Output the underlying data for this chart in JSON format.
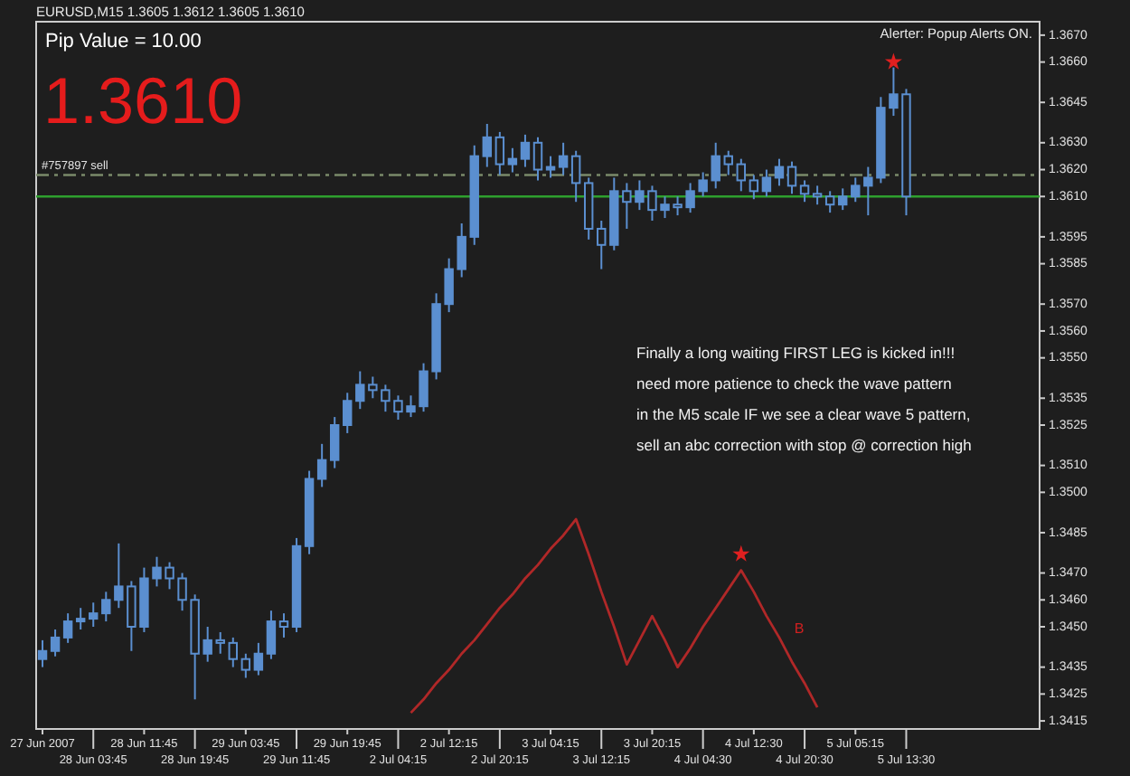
{
  "chart_data": {
    "type": "candlestick",
    "title": "EURUSD,M15  1.3605 1.3612 1.3605 1.3610",
    "subtitle": "Pip Value = 10.00",
    "annotations": [
      "1.3610",
      "Alerter:  Popup Alerts ON.",
      "Finally a long waiting FIRST LEG is kicked in!!!\nneed more patience to check the wave pattern\nin the M5 scale IF we see a clear wave 5 pattern,\nsell an abc correction with stop @ correction high",
      "B"
    ],
    "categories": [
      "27 Jun 2007",
      null,
      null,
      null,
      "28 Jun 03:45",
      null,
      null,
      null,
      "28 Jun 11:45",
      null,
      null,
      null,
      "28 Jun 19:45",
      null,
      null,
      null,
      "29 Jun 03:45",
      null,
      null,
      null,
      "29 Jun 11:45",
      null,
      null,
      null,
      "29 Jun 19:45",
      null,
      null,
      null,
      "2 Jul 04:15",
      null,
      null,
      null,
      "2 Jul 12:15",
      null,
      null,
      null,
      "2 Jul 20:15",
      null,
      null,
      null,
      "3 Jul 04:15",
      null,
      null,
      null,
      "3 Jul 12:15",
      null,
      null,
      null,
      "3 Jul 20:15",
      null,
      null,
      null,
      "4 Jul 04:30",
      null,
      null,
      null,
      "4 Jul 12:30",
      null,
      null,
      null,
      "4 Jul 20:30",
      null,
      null,
      null,
      "5 Jul 05:15",
      null,
      null,
      null,
      "5 Jul 13:30",
      null,
      null,
      null,
      null,
      null,
      null,
      null,
      null,
      null,
      null
    ],
    "ylim": [
      1.3412,
      1.3675
    ],
    "yticks": [
      {
        "value": 1.367,
        "label": "1.3670"
      },
      {
        "value": 1.366,
        "label": "1.3660"
      },
      {
        "value": 1.3645,
        "label": "1.3645"
      },
      {
        "value": 1.363,
        "label": "1.3630"
      },
      {
        "value": 1.362,
        "label": "1.3620"
      },
      {
        "value": 1.361,
        "label": "1.3610"
      },
      {
        "value": 1.3595,
        "label": "1.3595"
      },
      {
        "value": 1.3585,
        "label": "1.3585"
      },
      {
        "value": 1.357,
        "label": "1.3570"
      },
      {
        "value": 1.356,
        "label": "1.3560"
      },
      {
        "value": 1.355,
        "label": "1.3550"
      },
      {
        "value": 1.3535,
        "label": "1.3535"
      },
      {
        "value": 1.3525,
        "label": "1.3525"
      },
      {
        "value": 1.351,
        "label": "1.3510"
      },
      {
        "value": 1.35,
        "label": "1.3500"
      },
      {
        "value": 1.3485,
        "label": "1.3485"
      },
      {
        "value": 1.347,
        "label": "1.3470"
      },
      {
        "value": 1.346,
        "label": "1.3460"
      },
      {
        "value": 1.345,
        "label": "1.3450"
      },
      {
        "value": 1.3435,
        "label": "1.3435"
      },
      {
        "value": 1.3425,
        "label": "1.3425"
      },
      {
        "value": 1.3415,
        "label": "1.3415"
      }
    ],
    "ref_lines": [
      {
        "axis": "y",
        "value": 1.3618,
        "label": "#757897 sell",
        "color": "#7a8a6a",
        "line_style": "dashed"
      },
      {
        "axis": "y",
        "value": 1.361,
        "color": "#2ea02e",
        "line_style": "solid"
      }
    ],
    "series": [
      {
        "color": "#5b8fd0",
        "ohlc": [
          [
            1.3438,
            1.3445,
            1.3435,
            1.3441
          ],
          [
            1.3441,
            1.3449,
            1.3439,
            1.3446
          ],
          [
            1.3446,
            1.3455,
            1.3444,
            1.3452
          ],
          [
            1.3452,
            1.3457,
            1.3449,
            1.3453
          ],
          [
            1.3453,
            1.3459,
            1.345,
            1.3455
          ],
          [
            1.3455,
            1.3463,
            1.3452,
            1.346
          ],
          [
            1.346,
            1.3481,
            1.3457,
            1.3465
          ],
          [
            1.3465,
            1.3467,
            1.3441,
            1.345
          ],
          [
            1.345,
            1.3472,
            1.3448,
            1.3468
          ],
          [
            1.3468,
            1.3476,
            1.3465,
            1.3472
          ],
          [
            1.3472,
            1.3474,
            1.3464,
            1.3468
          ],
          [
            1.3468,
            1.347,
            1.3456,
            1.346
          ],
          [
            1.346,
            1.3462,
            1.3423,
            1.344
          ],
          [
            1.344,
            1.345,
            1.3437,
            1.3445
          ],
          [
            1.3445,
            1.3448,
            1.344,
            1.3444
          ],
          [
            1.3444,
            1.3446,
            1.3435,
            1.3438
          ],
          [
            1.3438,
            1.344,
            1.3431,
            1.3434
          ],
          [
            1.3434,
            1.3444,
            1.3432,
            1.344
          ],
          [
            1.344,
            1.3456,
            1.3438,
            1.3452
          ],
          [
            1.3452,
            1.3455,
            1.3446,
            1.345
          ],
          [
            1.345,
            1.3483,
            1.3448,
            1.348
          ],
          [
            1.348,
            1.3508,
            1.3477,
            1.3505
          ],
          [
            1.3505,
            1.3518,
            1.3502,
            1.3512
          ],
          [
            1.3512,
            1.3528,
            1.3509,
            1.3525
          ],
          [
            1.3525,
            1.3537,
            1.3522,
            1.3534
          ],
          [
            1.3534,
            1.3545,
            1.3531,
            1.354
          ],
          [
            1.354,
            1.3543,
            1.3535,
            1.3538
          ],
          [
            1.3538,
            1.354,
            1.353,
            1.3534
          ],
          [
            1.3534,
            1.3536,
            1.3527,
            1.353
          ],
          [
            1.353,
            1.3536,
            1.3528,
            1.3532
          ],
          [
            1.3532,
            1.3548,
            1.353,
            1.3545
          ],
          [
            1.3545,
            1.3574,
            1.3542,
            1.357
          ],
          [
            1.357,
            1.3587,
            1.3567,
            1.3583
          ],
          [
            1.3583,
            1.36,
            1.358,
            1.3595
          ],
          [
            1.3595,
            1.3629,
            1.3592,
            1.3625
          ],
          [
            1.3625,
            1.3637,
            1.3621,
            1.3632
          ],
          [
            1.3632,
            1.3634,
            1.3618,
            1.3622
          ],
          [
            1.3622,
            1.3628,
            1.3619,
            1.3624
          ],
          [
            1.3624,
            1.3633,
            1.3621,
            1.363
          ],
          [
            1.363,
            1.3632,
            1.3616,
            1.362
          ],
          [
            1.362,
            1.3625,
            1.3617,
            1.3621
          ],
          [
            1.3621,
            1.363,
            1.3618,
            1.3625
          ],
          [
            1.3625,
            1.3627,
            1.3608,
            1.3615
          ],
          [
            1.3615,
            1.3617,
            1.3594,
            1.3598
          ],
          [
            1.3598,
            1.3601,
            1.3583,
            1.3592
          ],
          [
            1.3592,
            1.3617,
            1.359,
            1.3612
          ],
          [
            1.3612,
            1.3615,
            1.3598,
            1.3608
          ],
          [
            1.3608,
            1.3616,
            1.3605,
            1.3612
          ],
          [
            1.3612,
            1.3614,
            1.3601,
            1.3605
          ],
          [
            1.3605,
            1.361,
            1.3602,
            1.3607
          ],
          [
            1.3607,
            1.361,
            1.3603,
            1.3606
          ],
          [
            1.3606,
            1.3615,
            1.3604,
            1.3612
          ],
          [
            1.3612,
            1.3619,
            1.361,
            1.3616
          ],
          [
            1.3616,
            1.363,
            1.3613,
            1.3625
          ],
          [
            1.3625,
            1.3627,
            1.3618,
            1.3622
          ],
          [
            1.3622,
            1.3624,
            1.3612,
            1.3616
          ],
          [
            1.3616,
            1.3618,
            1.3609,
            1.3612
          ],
          [
            1.3612,
            1.362,
            1.361,
            1.3617
          ],
          [
            1.3617,
            1.3624,
            1.3614,
            1.3621
          ],
          [
            1.3621,
            1.3623,
            1.3611,
            1.3614
          ],
          [
            1.3614,
            1.3616,
            1.3608,
            1.3611
          ],
          [
            1.3611,
            1.3614,
            1.3607,
            1.361
          ],
          [
            1.361,
            1.3612,
            1.3604,
            1.3607
          ],
          [
            1.3607,
            1.3613,
            1.3605,
            1.361
          ],
          [
            1.361,
            1.3617,
            1.3608,
            1.3614
          ],
          [
            1.3614,
            1.3621,
            1.3603,
            1.3617
          ],
          [
            1.3617,
            1.3647,
            1.3615,
            1.3643
          ],
          [
            1.3643,
            1.3658,
            1.364,
            1.3648
          ],
          [
            1.3648,
            1.365,
            1.3603,
            1.361
          ],
          null,
          null,
          null,
          null,
          null,
          null,
          null,
          null,
          null,
          null
        ]
      },
      {
        "type": "line",
        "color": "#b02828",
        "values": [
          null,
          null,
          null,
          null,
          null,
          null,
          null,
          null,
          null,
          null,
          null,
          null,
          null,
          null,
          null,
          null,
          null,
          null,
          null,
          null,
          null,
          null,
          null,
          null,
          null,
          null,
          null,
          null,
          null,
          1.3418,
          1.3423,
          1.3429,
          1.3434,
          1.344,
          1.3445,
          1.3451,
          1.3457,
          1.3462,
          1.3468,
          1.3473,
          1.3479,
          1.3484,
          1.349,
          1.3477,
          1.3463,
          1.345,
          1.3436,
          1.3445,
          1.3454,
          1.3445,
          1.3435,
          1.3442,
          1.345,
          1.3457,
          1.3464,
          1.3471,
          1.3463,
          1.3454,
          1.3446,
          1.3437,
          1.3429,
          1.342,
          null,
          null,
          null,
          null,
          null,
          null,
          null,
          null,
          null,
          null,
          null,
          null,
          null,
          null,
          null,
          null,
          null
        ]
      },
      {
        "type": "scatter",
        "color": "#e02020",
        "marker": "star",
        "values": [
          null,
          null,
          null,
          null,
          null,
          null,
          null,
          null,
          null,
          null,
          null,
          null,
          null,
          null,
          null,
          null,
          null,
          null,
          null,
          null,
          null,
          null,
          null,
          null,
          null,
          null,
          null,
          null,
          null,
          null,
          null,
          null,
          null,
          null,
          null,
          null,
          null,
          null,
          null,
          null,
          null,
          null,
          null,
          null,
          null,
          null,
          null,
          null,
          null,
          null,
          null,
          null,
          null,
          null,
          null,
          1.3477,
          null,
          null,
          null,
          null,
          null,
          null,
          null,
          null,
          null,
          null,
          null,
          1.366,
          null,
          null,
          null,
          null,
          null,
          null,
          null,
          null,
          null,
          null,
          null
        ]
      }
    ]
  }
}
